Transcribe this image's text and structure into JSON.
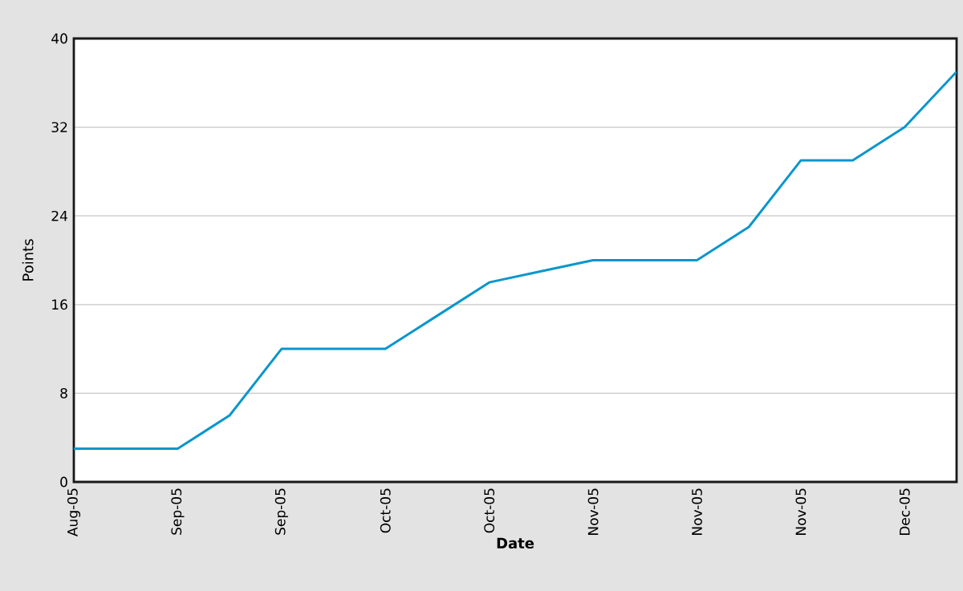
{
  "chart_data": {
    "type": "line",
    "xlabel": "Date",
    "ylabel": "Points",
    "categories": [
      "Aug-05",
      null,
      "Sep-05",
      null,
      "Sep-05",
      null,
      "Oct-05",
      null,
      "Oct-05",
      null,
      "Nov-05",
      null,
      "Nov-05",
      null,
      "Nov-05",
      null,
      "Dec-05",
      null
    ],
    "values": [
      3,
      3,
      3,
      6,
      12,
      12,
      12,
      15,
      18,
      19,
      20,
      20,
      20,
      23,
      29,
      29,
      32,
      37
    ],
    "color": "#0a96cc",
    "ylim": [
      0,
      40
    ],
    "yticks": [
      0,
      8,
      16,
      24,
      32,
      40
    ],
    "grid": "y",
    "marker": "none",
    "line_style": "solid"
  }
}
